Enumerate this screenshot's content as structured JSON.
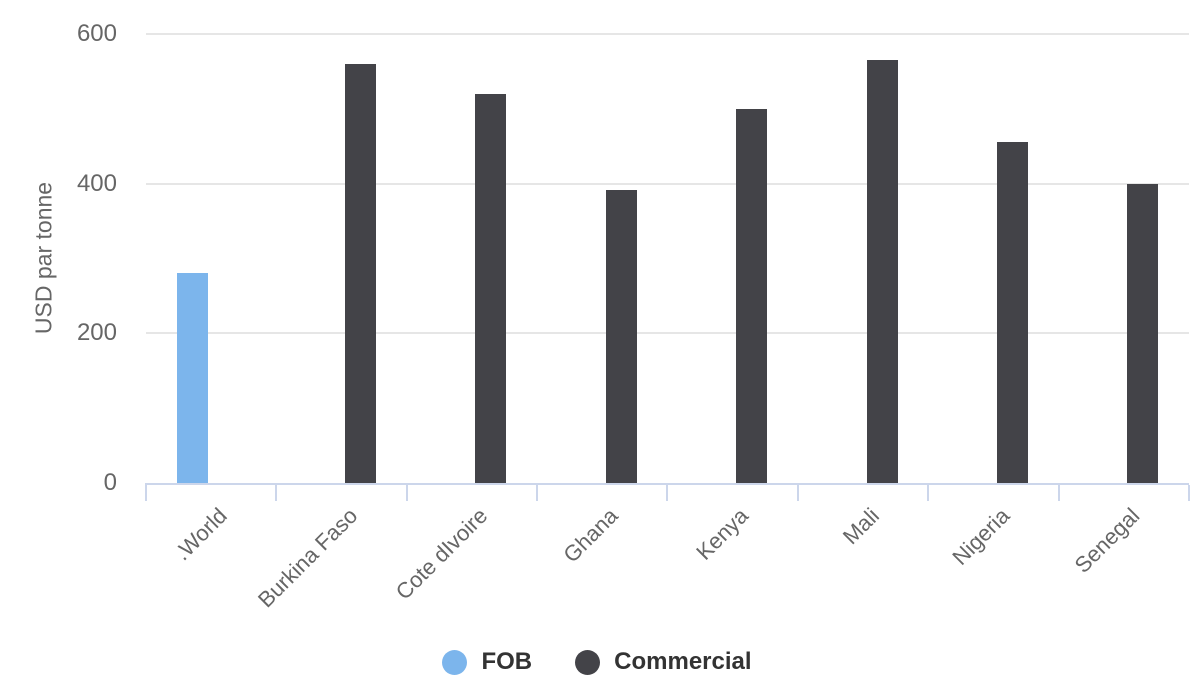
{
  "chart_data": {
    "type": "bar",
    "title": "",
    "ylabel": "USD par tonne",
    "xlabel": "",
    "categories": [
      ".World",
      "Burkina Faso",
      "Cote dIvoire",
      "Ghana",
      "Kenya",
      "Mali",
      "Nigeria",
      "Senegal"
    ],
    "series": [
      {
        "name": "FOB",
        "color": "#7cb5ec",
        "values": [
          280,
          null,
          null,
          null,
          null,
          null,
          null,
          null
        ]
      },
      {
        "name": "Commercial",
        "color": "#434348",
        "values": [
          null,
          560,
          520,
          392,
          500,
          565,
          456,
          400
        ]
      }
    ],
    "ylim": [
      0,
      600
    ],
    "yticks": [
      0,
      200,
      400,
      600
    ],
    "grid": true,
    "vertical_gridlines": false,
    "legend_position": "bottom-center",
    "x_label_rotation_deg": -45
  },
  "colors": {
    "background": "#ffffff",
    "axis_line": "#ccd6eb",
    "gridline": "#e6e6e6",
    "tick_label": "#666666",
    "axis_title": "#666666",
    "legend_text": "#333333"
  }
}
